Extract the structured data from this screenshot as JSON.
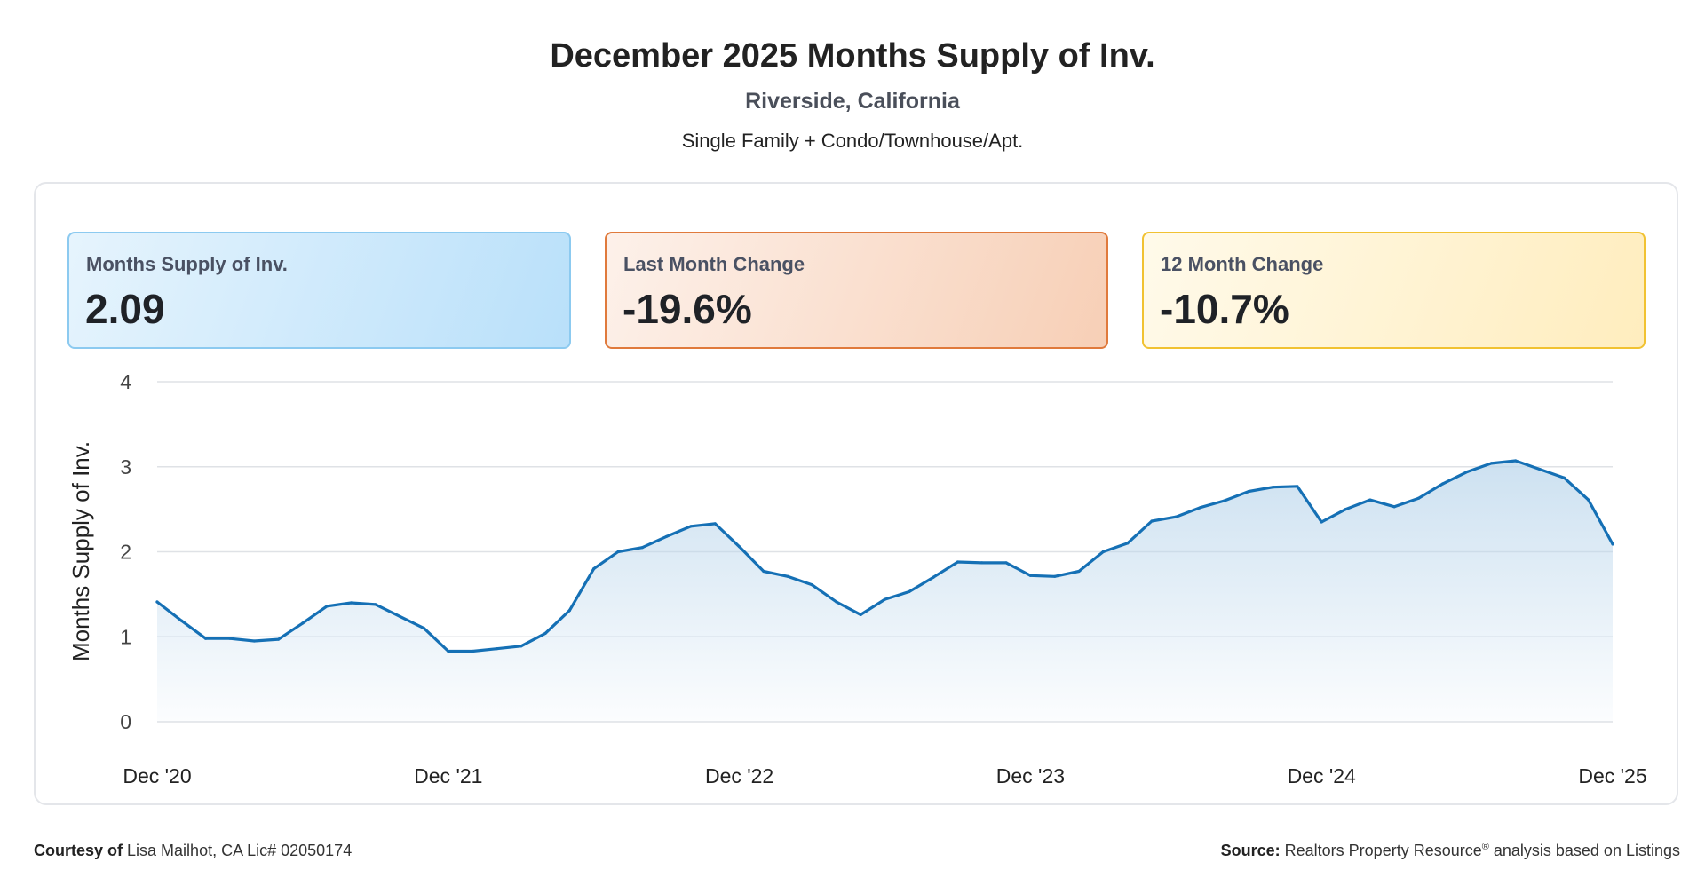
{
  "header": {
    "title": "December 2025 Months Supply of Inv.",
    "subtitle": "Riverside, California",
    "segment": "Single Family + Condo/Townhouse/Apt."
  },
  "cards": [
    {
      "label": "Months Supply of Inv.",
      "value": "2.09"
    },
    {
      "label": "Last Month Change",
      "value": "-19.6%"
    },
    {
      "label": "12 Month Change",
      "value": "-10.7%"
    }
  ],
  "colors": {
    "line": "#1570b5",
    "fill_top": "#bcd7ec",
    "grid": "#dfe2e6"
  },
  "chart_data": {
    "type": "area",
    "ylabel": "Months Supply of Inv.",
    "ylim": [
      0,
      4
    ],
    "yticks": [
      0,
      1,
      2,
      3,
      4
    ],
    "x_tick_labels": [
      "Dec '20",
      "Dec '21",
      "Dec '22",
      "Dec '23",
      "Dec '24",
      "Dec '25"
    ],
    "grid": true,
    "series": [
      {
        "values": [
          1.41,
          1.19,
          0.98,
          0.98,
          0.95,
          0.97,
          1.16,
          1.36,
          1.4,
          1.38,
          1.24,
          1.1,
          0.83,
          0.83,
          0.86,
          0.89,
          1.04,
          1.31,
          1.8,
          2.0,
          2.05,
          2.18,
          2.3,
          2.33,
          2.06,
          1.77,
          1.71,
          1.61,
          1.41,
          1.26,
          1.44,
          1.53,
          1.7,
          1.88,
          1.87,
          1.87,
          1.72,
          1.71,
          1.77,
          2.0,
          2.1,
          2.36,
          2.41,
          2.52,
          2.6,
          2.71,
          2.76,
          2.77,
          2.35,
          2.5,
          2.61,
          2.53,
          2.63,
          2.8,
          2.94,
          3.04,
          3.07,
          2.97,
          2.87,
          2.61,
          2.09
        ]
      }
    ]
  },
  "footer": {
    "courtesy_label": "Courtesy of",
    "courtesy_text": "Lisa Mailhot, CA Lic# 02050174",
    "source_label": "Source:",
    "source_text": "Realtors Property Resource",
    "source_mark": "®",
    "source_suffix": "analysis based on Listings"
  }
}
